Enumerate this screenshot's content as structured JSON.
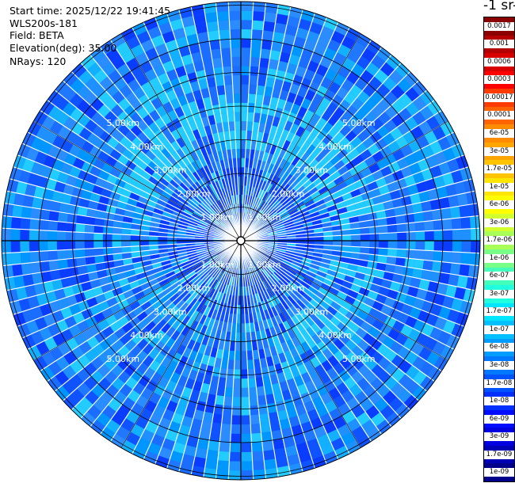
{
  "info": {
    "start_time": "Start time: 2025/12/22 19:41:45",
    "device": "WLS200s-181",
    "field": "Field: BETA",
    "elevation": "Elevation(deg): 35.00",
    "nrays": "NRays: 120"
  },
  "colorbar": {
    "title": "-1 sr-",
    "labels": [
      "0.0017",
      "0.001",
      "0.0006",
      "0.0003",
      "0.00017",
      "0.0001",
      "6e-05",
      "3e-05",
      "1.7e-05",
      "1e-05",
      "6e-06",
      "3e-06",
      "1.7e-06",
      "1e-06",
      "6e-07",
      "3e-07",
      "1.7e-07",
      "1e-07",
      "6e-08",
      "3e-08",
      "1.7e-08",
      "1e-08",
      "6e-09",
      "3e-09",
      "1.7e-09",
      "1e-09"
    ],
    "colors": [
      "#8b0000",
      "#b30000",
      "#d90000",
      "#ff0000",
      "#ff3b00",
      "#ff6400",
      "#ff8c00",
      "#ffa500",
      "#ffc400",
      "#ffe600",
      "#ffff00",
      "#d2ff2d",
      "#a8ff57",
      "#78ff87",
      "#44ffbb",
      "#1fffe0",
      "#00e6ff",
      "#00c0ff",
      "#009cff",
      "#0078ff",
      "#0054ff",
      "#0030ff",
      "#000cff",
      "#0000e0",
      "#0000b4",
      "#00008b"
    ]
  },
  "range_labels": [
    "1.00km",
    "2.00km",
    "3.00km",
    "4.00km",
    "5.00km"
  ]
}
